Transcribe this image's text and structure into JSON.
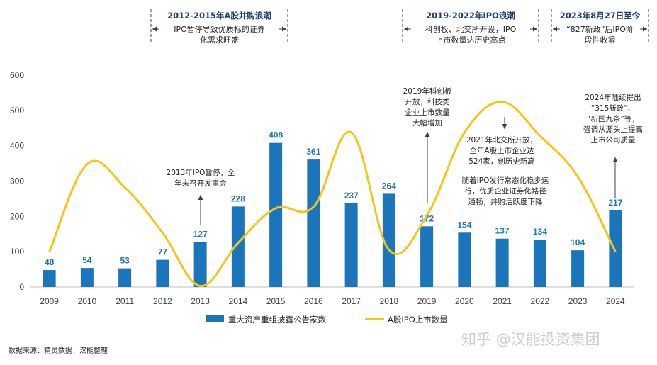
{
  "chart_data": {
    "type": "bar+line",
    "categories": [
      "2009",
      "2010",
      "2011",
      "2012",
      "2013",
      "2014",
      "2015",
      "2016",
      "2017",
      "2018",
      "2019",
      "2020",
      "2021",
      "2022",
      "2023",
      "2024"
    ],
    "series": [
      {
        "name": "重大资产重组披露公告家数",
        "type": "bar",
        "color": "#1b75bb",
        "values": [
          48,
          54,
          53,
          77,
          127,
          228,
          408,
          361,
          237,
          264,
          172,
          154,
          137,
          134,
          104,
          217
        ]
      },
      {
        "name": "A股IPO上市数量",
        "type": "line",
        "color": "#f5c518",
        "values": [
          99,
          348,
          282,
          154,
          3,
          125,
          223,
          227,
          438,
          105,
          202,
          437,
          524,
          428,
          313,
          100
        ]
      }
    ],
    "ylim": [
      0,
      600
    ],
    "yticks": [
      "0",
      "100",
      "200",
      "300",
      "400",
      "500",
      "600"
    ],
    "grid": false,
    "legend": "bottom"
  },
  "headers": [
    {
      "title": "2012-2015年A股并购浪潮",
      "lines": [
        "IPO暂停导致优质标的证券",
        "化需求旺盛"
      ]
    },
    {
      "title": "2019-2022年IPO浪潮",
      "lines": [
        "科创板、北交所开设，IPO",
        "上市数量达历史高点"
      ]
    },
    {
      "title": "2023年8月27日至今",
      "lines": [
        "“827新政”后IPO阶",
        "段性收紧"
      ]
    }
  ],
  "annotations": {
    "a2013": [
      "2013年IPO暂停，全",
      "年未召开发审会"
    ],
    "a2019": [
      "2019年科创板",
      "开放，科技类",
      "企业上市数量",
      "大幅增加"
    ],
    "a2021": [
      "2021年北交所开放，",
      "全年A股上市企业达",
      "524家，创历史新高"
    ],
    "a2022": [
      "随着IPO发行常态化稳步运",
      "行，优质企业证券化路径",
      "通畅，并购活跃度下降"
    ],
    "a2024": [
      "2024年陆续提出",
      "“315新政”、",
      "“新国九条”等，",
      "强调从源头上提高",
      "上市公司质量"
    ]
  },
  "source": "数据来源：精灵数据、汉能整理",
  "watermark": "知乎 @汉能投资集团"
}
